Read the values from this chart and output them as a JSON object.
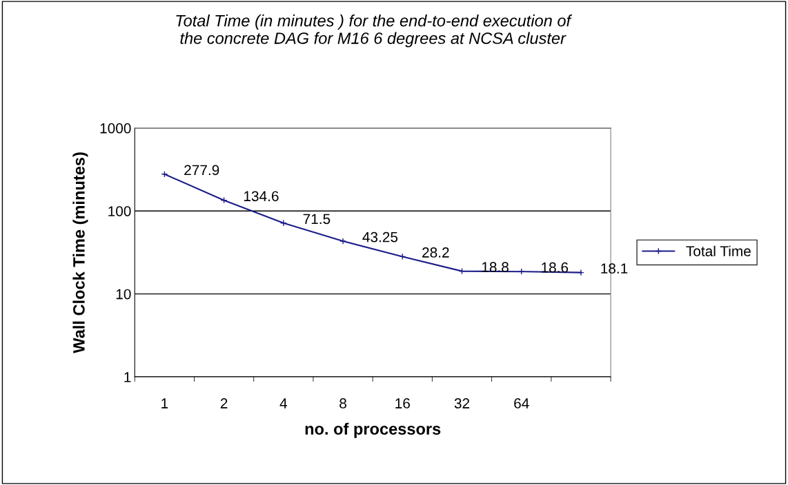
{
  "chart_data": {
    "type": "line",
    "title": "Total Time (in minutes ) for the end-to-end execution of\nthe concrete DAG for M16 6 degrees at NCSA cluster",
    "xlabel": "no. of processors",
    "ylabel": "Wall Clock Time (minutes)",
    "categories": [
      "1",
      "2",
      "4",
      "8",
      "16",
      "32",
      "64",
      null
    ],
    "series": [
      {
        "name": "Total Time",
        "color": "#1c1c8a",
        "values": [
          277.9,
          134.6,
          71.5,
          43.25,
          28.2,
          18.8,
          18.6,
          18.1
        ]
      }
    ],
    "log": true,
    "ylim": [
      1,
      1000
    ],
    "yticks": [
      1,
      10,
      100,
      1000
    ],
    "grid": "y",
    "legend": "right",
    "marker": "cross",
    "line_style": "solid",
    "data_labels": true
  }
}
